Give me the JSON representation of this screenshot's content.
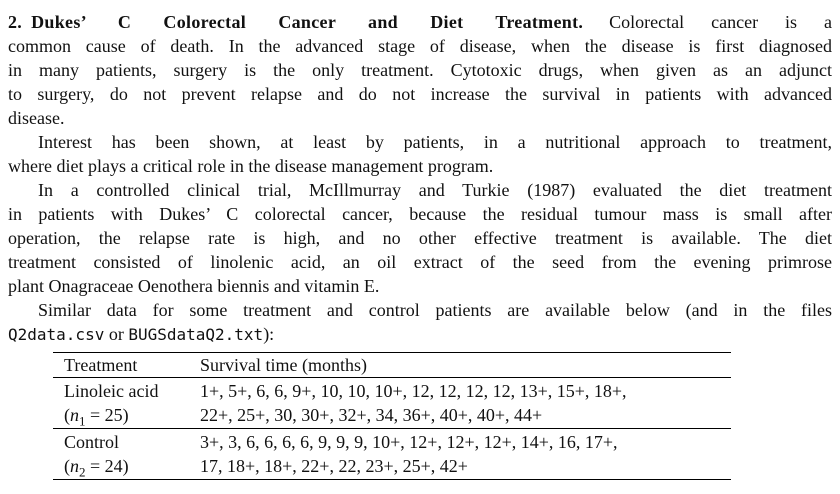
{
  "doc": {
    "heading_num": "2.",
    "heading_text": "Dukes’ C Colorectal Cancer and Diet Treatment.",
    "p1_lines": [
      "Colorectal cancer is a",
      "common cause of death. In the advanced stage of disease, when the disease is first diagnosed",
      "in many patients, surgery is the only treatment. Cytotoxic drugs, when given as an adjunct",
      "to surgery, do not prevent relapse and do not increase the survival in patients with advanced",
      "disease."
    ],
    "p2_lines": [
      "Interest has been shown, at least by patients, in a nutritional approach to treatment,",
      "where diet plays a critical role in the disease management program."
    ],
    "p3_lines": [
      "In a controlled clinical trial, McIllmurray and Turkie (1987) evaluated the diet treatment",
      "in patients with Dukes’ C colorectal cancer, because the residual tumour mass is small after",
      "operation, the relapse rate is high, and no other effective treatment is available. The diet",
      "treatment consisted of linolenic acid, an oil extract of the seed from the evening primrose",
      "plant Onagraceae Oenothera biennis and vitamin E."
    ],
    "p4_line1": "Similar data for some treatment and control patients are available below (and in the files",
    "p4_file1": "Q2data.csv",
    "p4_mid": " or ",
    "p4_file2": "BUGSdataQ2.txt",
    "p4_tail": "):"
  },
  "table": {
    "col_headers": [
      "Treatment",
      "Survival time (months)"
    ],
    "rows": [
      {
        "treatment": "Linoleic acid",
        "n_open": "(",
        "n_var": "n",
        "n_sub": "1",
        "n_rest": " = 25)",
        "times": [
          "1+, 5+, 6, 6, 9+, 10, 10, 10+, 12, 12, 12, 12, 13+, 15+, 18+,",
          "22+, 25+, 30, 30+, 32+, 34, 36+, 40+, 40+, 44+"
        ]
      },
      {
        "treatment": "Control",
        "n_open": "(",
        "n_var": "n",
        "n_sub": "2",
        "n_rest": " = 24)",
        "times": [
          "3+, 3, 6, 6, 6, 6, 9, 9, 9, 10+, 12+, 12+, 12+, 14+, 16, 17+,",
          "17, 18+, 18+, 22+, 22, 23+, 25+, 42+"
        ]
      }
    ]
  },
  "colors": {
    "text": "#111111",
    "background": "#ffffff",
    "rule": "#000000"
  }
}
